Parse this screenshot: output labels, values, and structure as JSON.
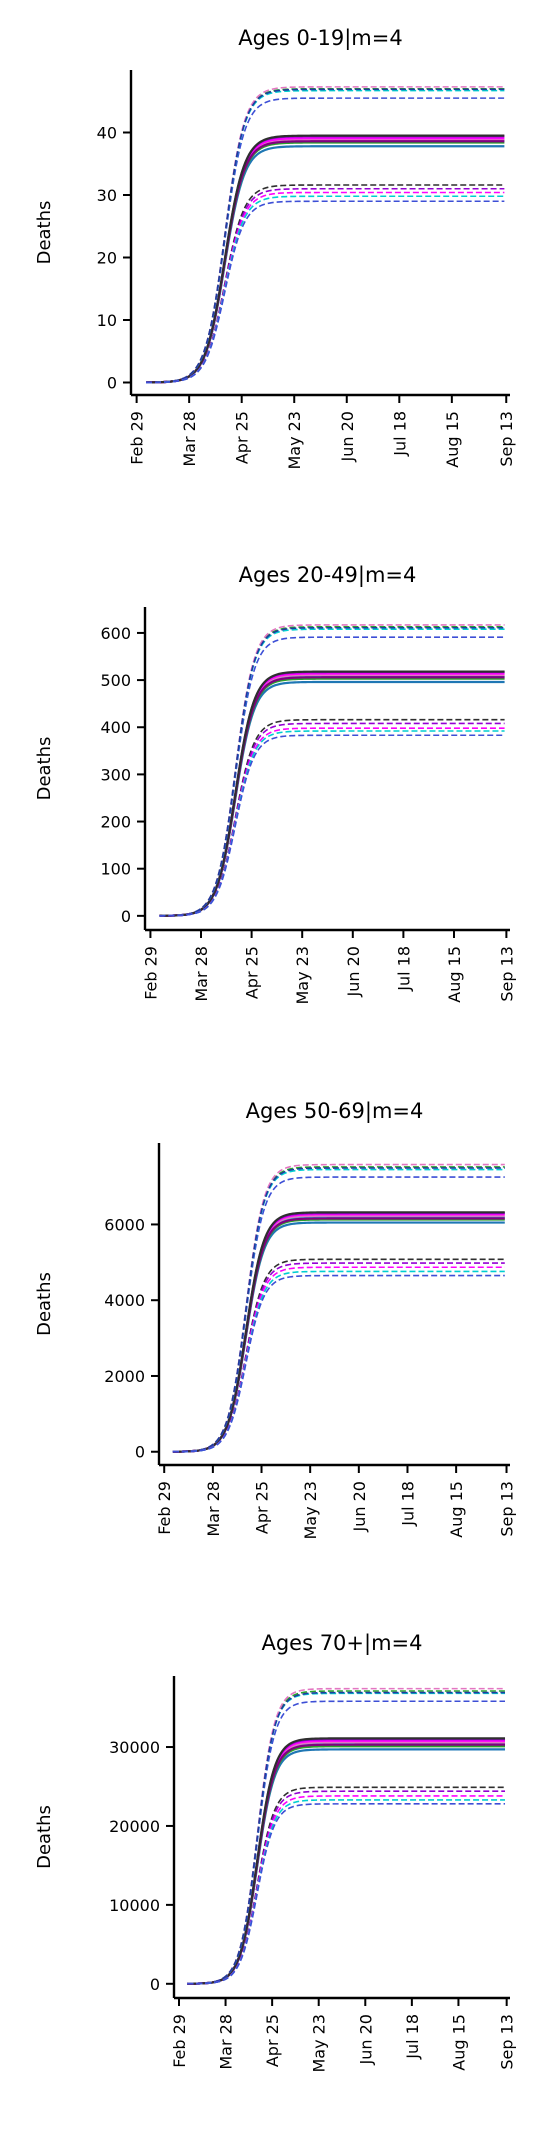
{
  "chart_data": [
    {
      "type": "line",
      "title": "Ages 0-19|m=4",
      "xlabel": "",
      "ylabel": "Deaths",
      "x_tick_labels": [
        "Feb 29",
        "Mar 28",
        "Apr 25",
        "May 23",
        "Jun 20",
        "Jul 18",
        "Aug 15",
        "Sep 13"
      ],
      "xlim": [
        "2020-02-26",
        "2020-09-15"
      ],
      "x_start": "2020-03-05",
      "midpoint_date": "2020-04-16",
      "ylim": [
        -2,
        50
      ],
      "y_ticks": [
        0,
        10,
        20,
        30,
        40
      ],
      "y_tick_labels": [
        "0",
        "10",
        "20",
        "30",
        "40"
      ],
      "grid": false,
      "legend": "none",
      "series": [
        {
          "color": "#1f77b4",
          "style": "solid",
          "final": 37.8
        },
        {
          "color": "#2ca02c",
          "style": "solid",
          "final": 38.4
        },
        {
          "color": "#17becf",
          "style": "solid",
          "final": 38.7
        },
        {
          "color": "#e377c2",
          "style": "solid",
          "final": 38.9
        },
        {
          "color": "#ff00ff",
          "style": "solid",
          "final": 39.1
        },
        {
          "color": "#9400d3",
          "style": "solid",
          "final": 39.4
        },
        {
          "color": "#800080",
          "style": "solid",
          "final": 38.6
        },
        {
          "color": "#2f2f2f",
          "style": "solid",
          "final": 39.5
        },
        {
          "color": "#3d4fd6",
          "style": "dashed",
          "final": 45.5
        },
        {
          "color": "#00ced1",
          "style": "dashed",
          "final": 46.7
        },
        {
          "color": "#2ca02c",
          "style": "dashed",
          "final": 47.0
        },
        {
          "color": "#e377c2",
          "style": "dashed",
          "final": 47.3
        },
        {
          "color": "#1f3aa0",
          "style": "dashed",
          "final": 46.9
        },
        {
          "color": "#2f2f2f",
          "style": "dashed",
          "final": 31.6
        },
        {
          "color": "#9400d3",
          "style": "dashed",
          "final": 31.0
        },
        {
          "color": "#ff00ff",
          "style": "dashed",
          "final": 30.4
        },
        {
          "color": "#00ced1",
          "style": "dashed",
          "final": 29.8
        },
        {
          "color": "#3d4fd6",
          "style": "dashed",
          "final": 29.0
        }
      ]
    },
    {
      "type": "line",
      "title": "Ages 20-49|m=4",
      "xlabel": "",
      "ylabel": "Deaths",
      "x_tick_labels": [
        "Feb 29",
        "Mar 28",
        "Apr 25",
        "May 23",
        "Jun 20",
        "Jul 18",
        "Aug 15",
        "Sep 13"
      ],
      "xlim": [
        "2020-02-26",
        "2020-09-15"
      ],
      "x_start": "2020-03-05",
      "midpoint_date": "2020-04-16",
      "ylim": [
        -30,
        655
      ],
      "y_ticks": [
        0,
        100,
        200,
        300,
        400,
        500,
        600
      ],
      "y_tick_labels": [
        "0",
        "100",
        "200",
        "300",
        "400",
        "500",
        "600"
      ],
      "grid": false,
      "legend": "none",
      "series": [
        {
          "color": "#1f77b4",
          "style": "solid",
          "final": 496
        },
        {
          "color": "#2ca02c",
          "style": "solid",
          "final": 503
        },
        {
          "color": "#17becf",
          "style": "solid",
          "final": 508
        },
        {
          "color": "#e377c2",
          "style": "solid",
          "final": 511
        },
        {
          "color": "#ff00ff",
          "style": "solid",
          "final": 514
        },
        {
          "color": "#9400d3",
          "style": "solid",
          "final": 517
        },
        {
          "color": "#800080",
          "style": "solid",
          "final": 506
        },
        {
          "color": "#2f2f2f",
          "style": "solid",
          "final": 518
        },
        {
          "color": "#3d4fd6",
          "style": "dashed",
          "final": 591
        },
        {
          "color": "#00ced1",
          "style": "dashed",
          "final": 608
        },
        {
          "color": "#2ca02c",
          "style": "dashed",
          "final": 613
        },
        {
          "color": "#e377c2",
          "style": "dashed",
          "final": 617
        },
        {
          "color": "#1f3aa0",
          "style": "dashed",
          "final": 611
        },
        {
          "color": "#2f2f2f",
          "style": "dashed",
          "final": 416
        },
        {
          "color": "#9400d3",
          "style": "dashed",
          "final": 408
        },
        {
          "color": "#ff00ff",
          "style": "dashed",
          "final": 398
        },
        {
          "color": "#00ced1",
          "style": "dashed",
          "final": 392
        },
        {
          "color": "#3d4fd6",
          "style": "dashed",
          "final": 383
        }
      ]
    },
    {
      "type": "line",
      "title": "Ages 50-69|m=4",
      "xlabel": "",
      "ylabel": "Deaths",
      "x_tick_labels": [
        "Feb 29",
        "Mar 28",
        "Apr 25",
        "May 23",
        "Jun 20",
        "Jul 18",
        "Aug 15",
        "Sep 13"
      ],
      "xlim": [
        "2020-02-26",
        "2020-09-15"
      ],
      "x_start": "2020-03-05",
      "midpoint_date": "2020-04-16",
      "ylim": [
        -350,
        8150
      ],
      "y_ticks": [
        0,
        2000,
        4000,
        6000
      ],
      "y_tick_labels": [
        "0",
        "2000",
        "4000",
        "6000"
      ],
      "grid": false,
      "legend": "none",
      "series": [
        {
          "color": "#1f77b4",
          "style": "solid",
          "final": 6050
        },
        {
          "color": "#2ca02c",
          "style": "solid",
          "final": 6130
        },
        {
          "color": "#17becf",
          "style": "solid",
          "final": 6190
        },
        {
          "color": "#e377c2",
          "style": "solid",
          "final": 6230
        },
        {
          "color": "#ff00ff",
          "style": "solid",
          "final": 6270
        },
        {
          "color": "#9400d3",
          "style": "solid",
          "final": 6300
        },
        {
          "color": "#800080",
          "style": "solid",
          "final": 6160
        },
        {
          "color": "#2f2f2f",
          "style": "solid",
          "final": 6320
        },
        {
          "color": "#3d4fd6",
          "style": "dashed",
          "final": 7250
        },
        {
          "color": "#00ced1",
          "style": "dashed",
          "final": 7450
        },
        {
          "color": "#2ca02c",
          "style": "dashed",
          "final": 7520
        },
        {
          "color": "#e377c2",
          "style": "dashed",
          "final": 7580
        },
        {
          "color": "#1f3aa0",
          "style": "dashed",
          "final": 7490
        },
        {
          "color": "#2f2f2f",
          "style": "dashed",
          "final": 5080
        },
        {
          "color": "#9400d3",
          "style": "dashed",
          "final": 4980
        },
        {
          "color": "#ff00ff",
          "style": "dashed",
          "final": 4870
        },
        {
          "color": "#00ced1",
          "style": "dashed",
          "final": 4760
        },
        {
          "color": "#3d4fd6",
          "style": "dashed",
          "final": 4650
        }
      ]
    },
    {
      "type": "line",
      "title": "Ages 70+|m=4",
      "xlabel": "",
      "ylabel": "Deaths",
      "x_tick_labels": [
        "Feb 29",
        "Mar 28",
        "Apr 25",
        "May 23",
        "Jun 20",
        "Jul 18",
        "Aug 15",
        "Sep 13"
      ],
      "xlim": [
        "2020-02-26",
        "2020-09-15"
      ],
      "x_start": "2020-03-05",
      "midpoint_date": "2020-04-16",
      "ylim": [
        -1800,
        39000
      ],
      "y_ticks": [
        0,
        10000,
        20000,
        30000
      ],
      "y_tick_labels": [
        "0",
        "10000",
        "20000",
        "30000"
      ],
      "grid": false,
      "legend": "none",
      "series": [
        {
          "color": "#1f77b4",
          "style": "solid",
          "final": 29700
        },
        {
          "color": "#2ca02c",
          "style": "solid",
          "final": 30100
        },
        {
          "color": "#17becf",
          "style": "solid",
          "final": 30400
        },
        {
          "color": "#e377c2",
          "style": "solid",
          "final": 30600
        },
        {
          "color": "#ff00ff",
          "style": "solid",
          "final": 30800
        },
        {
          "color": "#9400d3",
          "style": "solid",
          "final": 31000
        },
        {
          "color": "#800080",
          "style": "solid",
          "final": 30300
        },
        {
          "color": "#2f2f2f",
          "style": "solid",
          "final": 31100
        },
        {
          "color": "#3d4fd6",
          "style": "dashed",
          "final": 35800
        },
        {
          "color": "#00ced1",
          "style": "dashed",
          "final": 36800
        },
        {
          "color": "#2ca02c",
          "style": "dashed",
          "final": 37100
        },
        {
          "color": "#e377c2",
          "style": "dashed",
          "final": 37400
        },
        {
          "color": "#1f3aa0",
          "style": "dashed",
          "final": 36900
        },
        {
          "color": "#2f2f2f",
          "style": "dashed",
          "final": 24900
        },
        {
          "color": "#9400d3",
          "style": "dashed",
          "final": 24400
        },
        {
          "color": "#ff00ff",
          "style": "dashed",
          "final": 23800
        },
        {
          "color": "#00ced1",
          "style": "dashed",
          "final": 23300
        },
        {
          "color": "#3d4fd6",
          "style": "dashed",
          "final": 22800
        }
      ]
    }
  ]
}
